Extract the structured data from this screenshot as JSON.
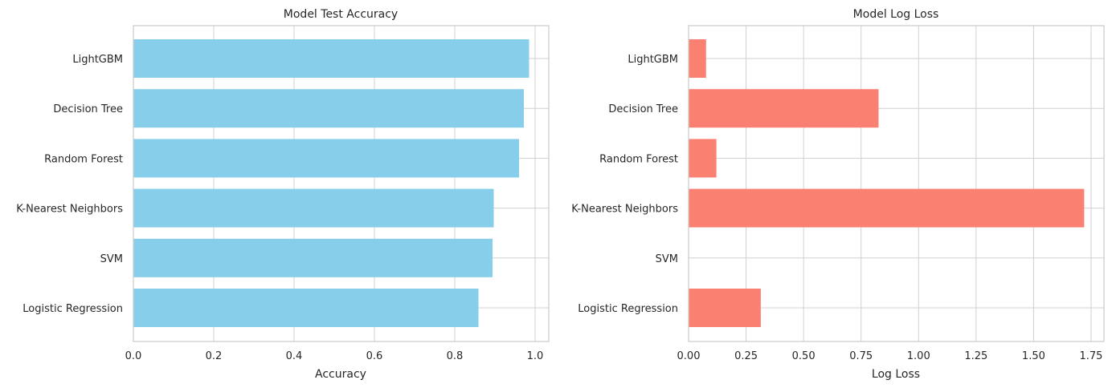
{
  "chart_data": [
    {
      "type": "bar",
      "orientation": "horizontal",
      "title": "Model Test Accuracy",
      "xlabel": "Accuracy",
      "ylabel": "",
      "categories": [
        "LightGBM",
        "Decision Tree",
        "Random Forest",
        "K-Nearest Neighbors",
        "SVM",
        "Logistic Regression"
      ],
      "values": [
        0.985,
        0.972,
        0.96,
        0.897,
        0.894,
        0.859
      ],
      "xlim": [
        0,
        1.034
      ],
      "xticks": [
        0.0,
        0.2,
        0.4,
        0.6,
        0.8,
        1.0
      ],
      "xtick_labels": [
        "0.0",
        "0.2",
        "0.4",
        "0.6",
        "0.8",
        "1.0"
      ],
      "bar_color": "#87ceeb",
      "grid": true
    },
    {
      "type": "bar",
      "orientation": "horizontal",
      "title": "Model Log Loss",
      "xlabel": "Log Loss",
      "ylabel": "",
      "categories": [
        "LightGBM",
        "Decision Tree",
        "Random Forest",
        "K-Nearest Neighbors",
        "SVM",
        "Logistic Regression"
      ],
      "values": [
        0.076,
        0.826,
        0.121,
        1.72,
        0,
        0.314
      ],
      "xlim": [
        0,
        1.806
      ],
      "xticks": [
        0.0,
        0.25,
        0.5,
        0.75,
        1.0,
        1.25,
        1.5,
        1.75
      ],
      "xtick_labels": [
        "0.00",
        "0.25",
        "0.50",
        "0.75",
        "1.00",
        "1.25",
        "1.50",
        "1.75"
      ],
      "bar_color": "#fa8072",
      "grid": true
    }
  ]
}
